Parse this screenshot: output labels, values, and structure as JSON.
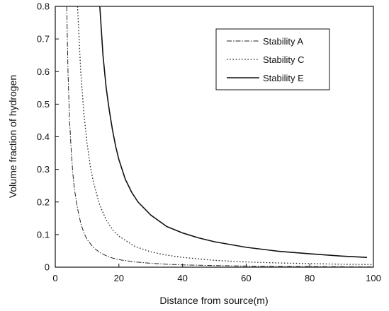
{
  "chart_data": {
    "type": "line",
    "title": "",
    "xlabel": "Distance from source(m)",
    "ylabel": "Volume fraction of hydrogen",
    "xlim": [
      0,
      100
    ],
    "ylim": [
      0,
      0.8
    ],
    "x_ticks": [
      "0",
      "20",
      "40",
      "60",
      "80",
      "100"
    ],
    "y_ticks": [
      "0",
      "0.1",
      "0.2",
      "0.3",
      "0.4",
      "0.5",
      "0.6",
      "0.7",
      "0.8"
    ],
    "grid": false,
    "legend_position": "top-right",
    "series": [
      {
        "name": "Stability A",
        "line_style": "dash-dot",
        "color": "#222222",
        "x": [
          3.6,
          4,
          4.5,
          5,
          5.5,
          6,
          7,
          8,
          9,
          10,
          12,
          14,
          16,
          18,
          20,
          25,
          30,
          35,
          40,
          50,
          60,
          70,
          80,
          90,
          100
        ],
        "y": [
          0.8,
          0.6,
          0.45,
          0.36,
          0.29,
          0.24,
          0.18,
          0.135,
          0.105,
          0.085,
          0.06,
          0.045,
          0.035,
          0.028,
          0.023,
          0.016,
          0.012,
          0.009,
          0.007,
          0.005,
          0.0035,
          0.0025,
          0.002,
          0.0015,
          0.001
        ]
      },
      {
        "name": "Stability C",
        "line_style": "dotted",
        "color": "#222222",
        "x": [
          7,
          8,
          9,
          10,
          11,
          12,
          14,
          16,
          18,
          20,
          25,
          30,
          35,
          40,
          50,
          60,
          70,
          80,
          90,
          100
        ],
        "y": [
          0.8,
          0.6,
          0.47,
          0.38,
          0.31,
          0.26,
          0.19,
          0.145,
          0.115,
          0.095,
          0.064,
          0.047,
          0.037,
          0.03,
          0.021,
          0.016,
          0.013,
          0.011,
          0.009,
          0.008
        ]
      },
      {
        "name": "Stability E",
        "line_style": "solid",
        "color": "#111111",
        "x": [
          14,
          15,
          16,
          17,
          18,
          19,
          20,
          22,
          24,
          26,
          28,
          30,
          35,
          40,
          45,
          50,
          60,
          70,
          80,
          90,
          98
        ],
        "y": [
          0.8,
          0.65,
          0.55,
          0.48,
          0.42,
          0.37,
          0.33,
          0.27,
          0.23,
          0.2,
          0.18,
          0.16,
          0.125,
          0.105,
          0.09,
          0.078,
          0.061,
          0.049,
          0.041,
          0.034,
          0.03
        ]
      }
    ]
  }
}
